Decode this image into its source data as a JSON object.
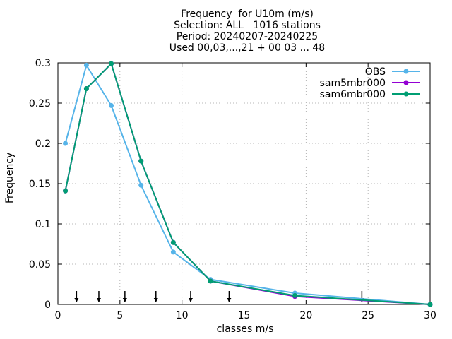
{
  "chart_data": {
    "type": "line",
    "title_lines": [
      "Frequency  for U10m (m/s)",
      "Selection: ALL   1016 stations",
      "Period: 20240207-20240225",
      "Used 00,03,...,21 + 00 03 ... 48"
    ],
    "xlabel": "classes m/s",
    "ylabel": "Frequency",
    "xlim": [
      0,
      30
    ],
    "ylim": [
      0,
      0.3
    ],
    "xticks": [
      0,
      5,
      10,
      15,
      20,
      25,
      30
    ],
    "yticks": [
      0,
      0.05,
      0.1,
      0.15,
      0.2,
      0.25,
      0.3
    ],
    "xtick_labels": [
      "0",
      "5",
      "10",
      "15",
      "20",
      "25",
      "30"
    ],
    "ytick_labels": [
      "0",
      "0.05",
      "0.1",
      "0.15",
      "0.2",
      "0.25",
      "0.3"
    ],
    "grid": true,
    "legend_position": "top-right",
    "x": [
      0.6,
      2.3,
      4.3,
      6.7,
      9.3,
      12.3,
      19.1,
      30
    ],
    "series": [
      {
        "name": "OBS",
        "color": "#56b4e9",
        "values": [
          0.2,
          0.297,
          0.247,
          0.148,
          0.065,
          0.031,
          0.014,
          0.0
        ]
      },
      {
        "name": "sam5mbr000",
        "color": "#9400d3",
        "values": [
          0.141,
          0.268,
          0.299,
          0.178,
          0.077,
          0.029,
          0.01,
          0.0
        ]
      },
      {
        "name": "sam6mbr000",
        "color": "#009e73",
        "values": [
          0.141,
          0.268,
          0.299,
          0.178,
          0.077,
          0.029,
          0.011,
          0.0
        ]
      }
    ],
    "class_boundary_markers": [
      1.5,
      3.3,
      5.4,
      7.9,
      10.7,
      13.8,
      24.5
    ]
  }
}
